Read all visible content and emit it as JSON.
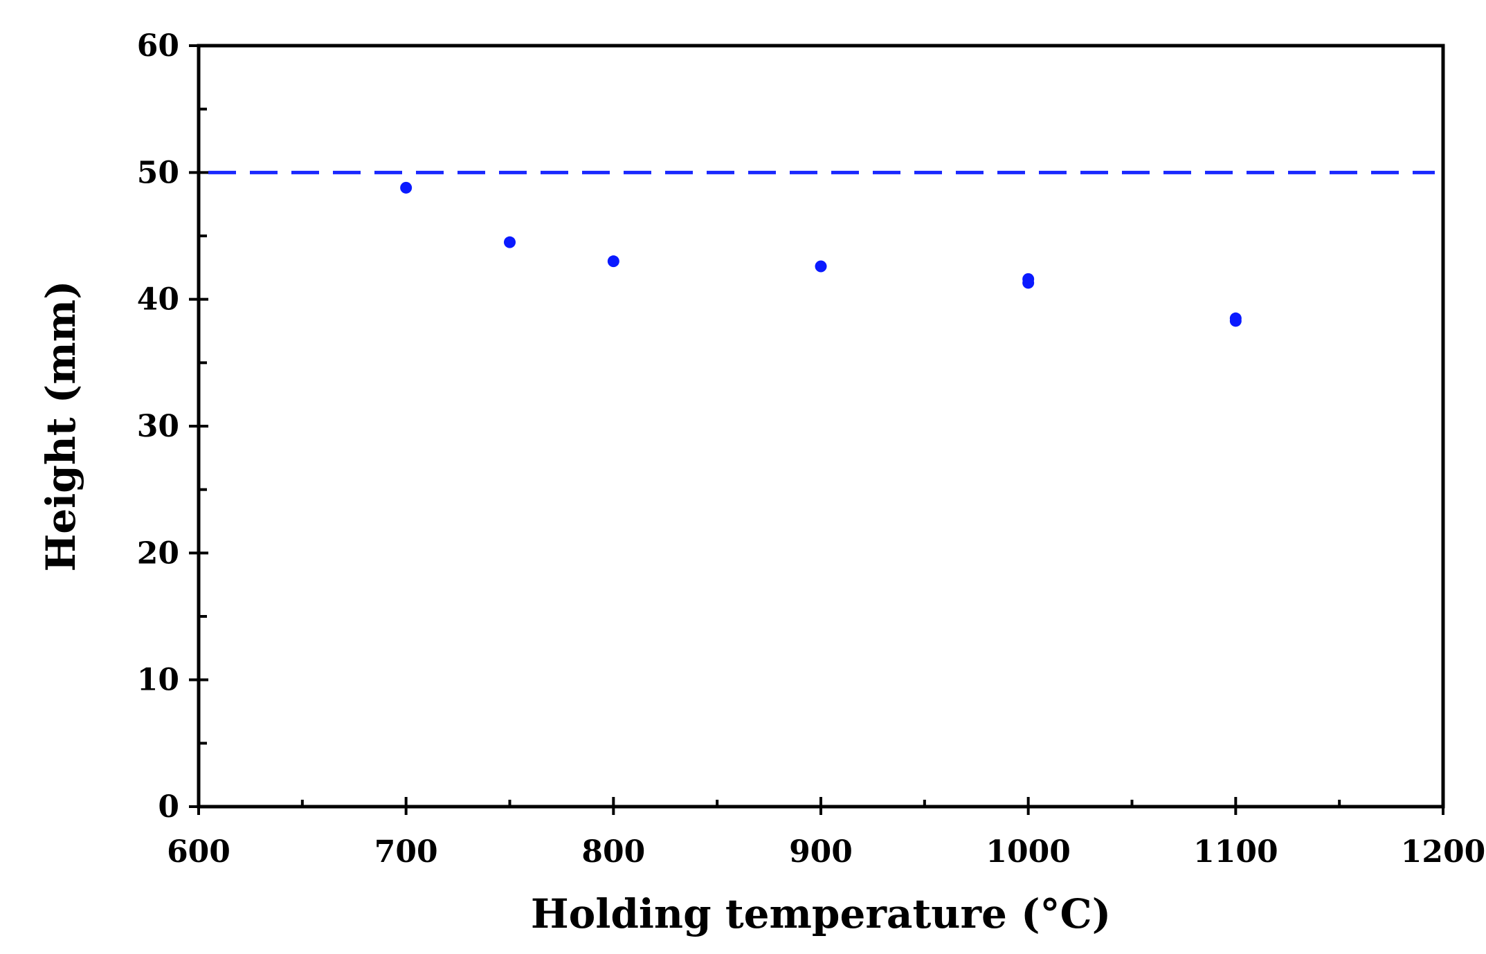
{
  "chart_data": {
    "type": "scatter",
    "title": "",
    "xlabel": "Holding temperature (°C)",
    "ylabel": "Height (mm)",
    "xlim": [
      600,
      1200
    ],
    "ylim": [
      0,
      60
    ],
    "x_ticks": [
      600,
      700,
      800,
      900,
      1000,
      1100,
      1200
    ],
    "x_minor_ticks": [
      650,
      750,
      850,
      950,
      1050,
      1150
    ],
    "y_ticks": [
      0,
      10,
      20,
      30,
      40,
      50,
      60
    ],
    "y_minor_ticks": [
      5,
      15,
      25,
      35,
      45,
      55
    ],
    "grid": false,
    "legend": "none",
    "series": [
      {
        "color": "#0a1aff",
        "points": [
          {
            "x": 700,
            "y": 48.8
          },
          {
            "x": 750,
            "y": 44.5
          },
          {
            "x": 800,
            "y": 43.0
          },
          {
            "x": 900,
            "y": 42.6
          },
          {
            "x": 1000,
            "y": 41.6
          },
          {
            "x": 1000,
            "y": 41.3
          },
          {
            "x": 1100,
            "y": 38.5
          },
          {
            "x": 1100,
            "y": 38.3
          }
        ]
      }
    ],
    "reference_lines": [
      {
        "orientation": "horizontal",
        "y": 50,
        "style": "dashed",
        "color": "#1a28ff"
      }
    ]
  }
}
